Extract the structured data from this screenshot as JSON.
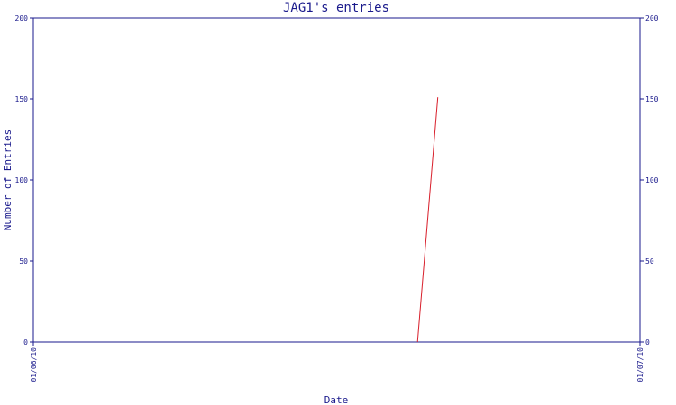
{
  "chart_data": {
    "type": "line",
    "title": "JAG1's entries",
    "xlabel": "Date",
    "ylabel": "Number of Entries",
    "ylim": [
      0,
      200
    ],
    "yticks": [
      0,
      50,
      100,
      150,
      200
    ],
    "xlim": [
      "01/06/10",
      "01/07/10"
    ],
    "xticks": [
      "01/06/10",
      "01/07/10"
    ],
    "series": [
      {
        "points": [
          {
            "x": "2010-06-20",
            "y": 0
          },
          {
            "x": "2010-06-21",
            "y": 151
          }
        ]
      }
    ],
    "grid": false,
    "colors": {
      "axis": "#1a1a8c",
      "line": "#d81e2a",
      "text": "#1a1a8c"
    }
  }
}
